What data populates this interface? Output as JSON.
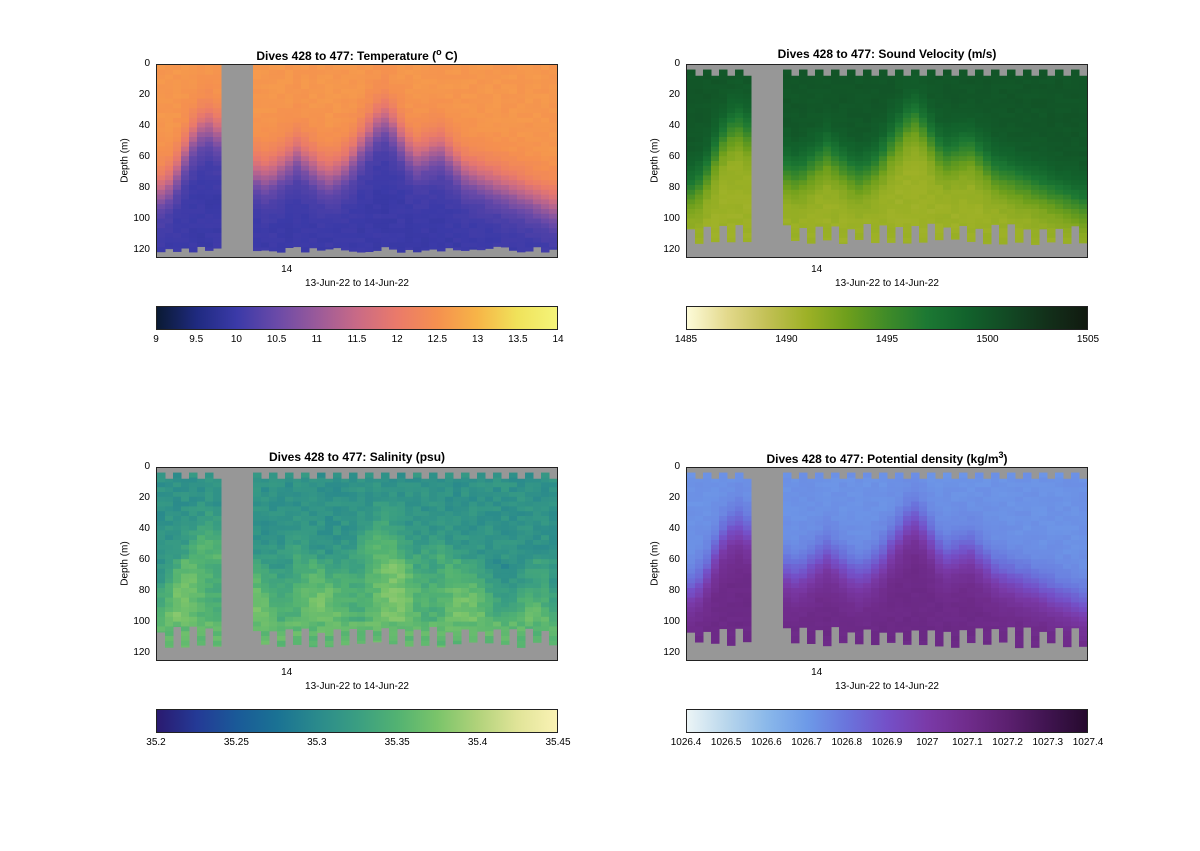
{
  "figure": {
    "panels": [
      {
        "id": "temperature",
        "title": "Dives 428 to 477: Temperature (",
        "title_sup": "o",
        "title_suffix": " C)",
        "ylabel": "Depth (m)",
        "xlabel": "13-Jun-22 to 14-Jun-22",
        "xtick": "14",
        "yticks": [
          "0",
          "20",
          "40",
          "60",
          "80",
          "100",
          "120"
        ],
        "colorbar_ticks": [
          "9",
          "9.5",
          "10",
          "10.5",
          "11",
          "11.5",
          "12",
          "12.5",
          "13",
          "13.5",
          "14"
        ],
        "colormap": [
          "#0a1a33",
          "#1f2a80",
          "#3b3aa8",
          "#6a4aa8",
          "#9a5a9a",
          "#c96a86",
          "#ea7a6a",
          "#f5904f",
          "#f7b447",
          "#f0e25a",
          "#f4f47a"
        ]
      },
      {
        "id": "sound-velocity",
        "title": "Dives 428 to 477: Sound Velocity (m/s)",
        "title_sup": "",
        "title_suffix": "",
        "ylabel": "Depth (m)",
        "xlabel": "13-Jun-22 to 14-Jun-22",
        "xtick": "14",
        "yticks": [
          "0",
          "20",
          "40",
          "60",
          "80",
          "100",
          "120"
        ],
        "colorbar_ticks": [
          "1485",
          "1490",
          "1495",
          "1500",
          "1505"
        ],
        "colormap": [
          "#fdfbd9",
          "#e3d98c",
          "#c2c055",
          "#9db126",
          "#6e9f1c",
          "#3f8b28",
          "#1c7833",
          "#12622c",
          "#124a24",
          "#12301a",
          "#111a10"
        ]
      },
      {
        "id": "salinity",
        "title": "Dives 428 to 477: Salinity (psu)",
        "title_sup": "",
        "title_suffix": "",
        "ylabel": "Depth (m)",
        "xlabel": "13-Jun-22 to 14-Jun-22",
        "xtick": "14",
        "yticks": [
          "0",
          "20",
          "40",
          "60",
          "80",
          "100",
          "120"
        ],
        "colorbar_ticks": [
          "35.2",
          "35.25",
          "35.3",
          "35.35",
          "35.4",
          "35.45"
        ],
        "colormap": [
          "#2a1a70",
          "#243a96",
          "#1a5a98",
          "#1a7294",
          "#2a8a8c",
          "#3a9e82",
          "#52b272",
          "#7ac46a",
          "#b0d27a",
          "#e0e498",
          "#faf2b4"
        ]
      },
      {
        "id": "potential-density",
        "title": "Dives 428 to 477: Potential density (kg/m",
        "title_sup": "3",
        "title_suffix": ")",
        "ylabel": "Depth (m)",
        "xlabel": "13-Jun-22 to 14-Jun-22",
        "xtick": "14",
        "yticks": [
          "0",
          "20",
          "40",
          "60",
          "80",
          "100",
          "120"
        ],
        "colorbar_ticks": [
          "1026.4",
          "1026.5",
          "1026.6",
          "1026.7",
          "1026.8",
          "1026.9",
          "1027",
          "1027.1",
          "1027.2",
          "1027.3",
          "1027.4"
        ],
        "colormap": [
          "#ecf5f6",
          "#b8d6ec",
          "#8ab8ea",
          "#6d9ae8",
          "#6a74dc",
          "#7450c8",
          "#7a3aa8",
          "#702c8c",
          "#5c2070",
          "#401450",
          "#260a2e"
        ]
      }
    ]
  },
  "chart_data": [
    {
      "type": "heatmap",
      "title": "Dives 428 to 477: Temperature (o C)",
      "xlabel": "13-Jun-22 to 14-Jun-22",
      "ylabel": "Depth (m)",
      "x_ticks": [
        "14"
      ],
      "ylim": [
        125,
        0
      ],
      "y_ticks": [
        0,
        20,
        40,
        60,
        80,
        100,
        120
      ],
      "colorbar_range": [
        9,
        14
      ],
      "colorbar_ticks": [
        9,
        9.5,
        10,
        10.5,
        11,
        11.5,
        12,
        12.5,
        13,
        13.5,
        14
      ],
      "dives": [
        428,
        477
      ],
      "surface_value": 12.6,
      "deep_value": 10.0,
      "thermocline_depth_profile": [
        82,
        78,
        70,
        58,
        48,
        42,
        40,
        44,
        48,
        55,
        62,
        66,
        70,
        72,
        70,
        66,
        62,
        58,
        62,
        66,
        70,
        72,
        70,
        66,
        60,
        52,
        45,
        38,
        35,
        40,
        48,
        56,
        60,
        58,
        56,
        55,
        60,
        65,
        70,
        72,
        74,
        76,
        78,
        80,
        82,
        84,
        86,
        88,
        90,
        92
      ],
      "gap_dives": [
        8,
        12
      ]
    },
    {
      "type": "heatmap",
      "title": "Dives 428 to 477: Sound Velocity (m/s)",
      "xlabel": "13-Jun-22 to 14-Jun-22",
      "ylabel": "Depth (m)",
      "x_ticks": [
        "14"
      ],
      "ylim": [
        125,
        0
      ],
      "y_ticks": [
        0,
        20,
        40,
        60,
        80,
        100,
        120
      ],
      "colorbar_range": [
        1485,
        1505
      ],
      "colorbar_ticks": [
        1485,
        1490,
        1495,
        1500,
        1505
      ],
      "surface_value": 1500,
      "deep_value": 1491,
      "gap_dives": [
        8,
        12
      ]
    },
    {
      "type": "heatmap",
      "title": "Dives 428 to 477: Salinity (psu)",
      "xlabel": "13-Jun-22 to 14-Jun-22",
      "ylabel": "Depth (m)",
      "x_ticks": [
        "14"
      ],
      "ylim": [
        125,
        0
      ],
      "y_ticks": [
        0,
        20,
        40,
        60,
        80,
        100,
        120
      ],
      "colorbar_range": [
        35.2,
        35.45
      ],
      "colorbar_ticks": [
        35.2,
        35.25,
        35.3,
        35.35,
        35.4,
        35.45
      ],
      "surface_value": 35.31,
      "deep_value": 35.36,
      "gap_dives": [
        8,
        12
      ]
    },
    {
      "type": "heatmap",
      "title": "Dives 428 to 477: Potential density (kg/m3)",
      "xlabel": "13-Jun-22 to 14-Jun-22",
      "ylabel": "Depth (m)",
      "x_ticks": [
        "14"
      ],
      "ylim": [
        125,
        0
      ],
      "y_ticks": [
        0,
        20,
        40,
        60,
        80,
        100,
        120
      ],
      "colorbar_range": [
        1026.4,
        1027.4
      ],
      "colorbar_ticks": [
        1026.4,
        1026.5,
        1026.6,
        1026.7,
        1026.8,
        1026.9,
        1027,
        1027.1,
        1027.2,
        1027.3,
        1027.4
      ],
      "surface_value": 1026.72,
      "deep_value": 1027.12,
      "gap_dives": [
        8,
        12
      ]
    }
  ]
}
